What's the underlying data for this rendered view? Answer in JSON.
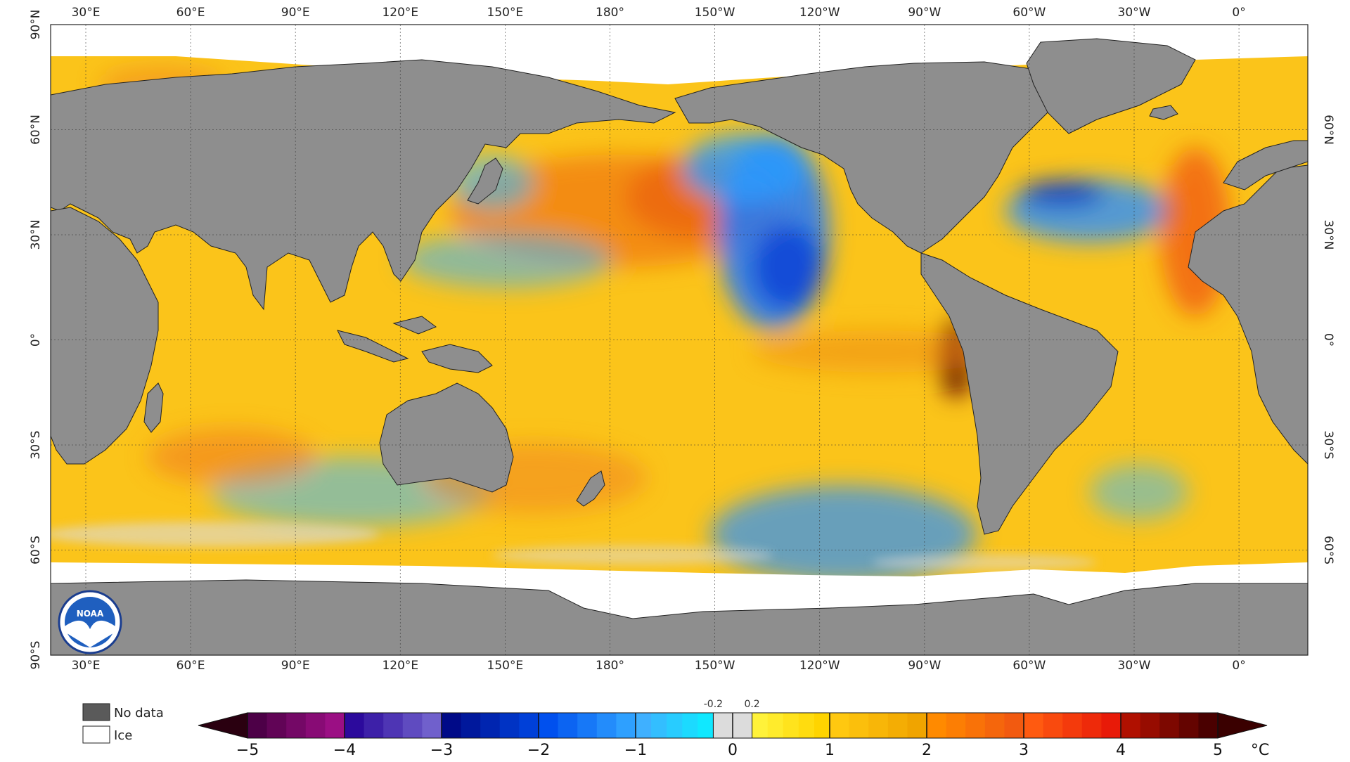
{
  "map": {
    "lon_labels": [
      "30°E",
      "60°E",
      "90°E",
      "120°E",
      "150°E",
      "180°",
      "150°W",
      "120°W",
      "90°W",
      "60°W",
      "30°W",
      "0°"
    ],
    "lat_labels_left": [
      "90°N",
      "60°N",
      "30°N",
      "0°",
      "30°S",
      "60°S",
      "90°S"
    ],
    "lat_labels_right": [
      "60°N",
      "30°N",
      "0°",
      "30°S",
      "60°S"
    ],
    "logo_text": "NOAA"
  },
  "legend": {
    "no_data_label": "No data",
    "ice_label": "Ice",
    "no_data_color": "#5a5a5a",
    "ice_color": "#ffffff"
  },
  "colorbar": {
    "ticks": [
      "−5",
      "−4",
      "−3",
      "−2",
      "−1",
      "0",
      "1",
      "2",
      "3",
      "4",
      "5"
    ],
    "small_ticks": [
      "-0.2",
      "0.2"
    ],
    "unit": "°C",
    "range": [
      -5,
      5
    ],
    "colors": {
      "min_extend": "#2a0010",
      "max_extend": "#3a0000",
      "stops": [
        {
          "from": -5,
          "to": -4,
          "c1": "#4d0047",
          "c2": "#9b0f84"
        },
        {
          "from": -4,
          "to": -3,
          "c1": "#2c0a9c",
          "c2": "#7060cc"
        },
        {
          "from": -3,
          "to": -2,
          "c1": "#000a88",
          "c2": "#0040d8"
        },
        {
          "from": -2,
          "to": -1,
          "c1": "#0050ee",
          "c2": "#2ea0ff"
        },
        {
          "from": -1,
          "to": -0.2,
          "c1": "#3fb0ff",
          "c2": "#10e8ff"
        },
        {
          "from": -0.2,
          "to": 0.2,
          "c1": "#dcdcdc",
          "c2": "#dcdcdc"
        },
        {
          "from": 0.2,
          "to": 1,
          "c1": "#fff23a",
          "c2": "#ffd400"
        },
        {
          "from": 1,
          "to": 2,
          "c1": "#ffc810",
          "c2": "#f0a400"
        },
        {
          "from": 2,
          "to": 3,
          "c1": "#ff8a00",
          "c2": "#f25a10"
        },
        {
          "from": 3,
          "to": 4,
          "c1": "#ff5a10",
          "c2": "#e81a08"
        },
        {
          "from": 4,
          "to": 5,
          "c1": "#b01000",
          "c2": "#4a0000"
        }
      ]
    }
  },
  "colors": {
    "land": "#8e8e8e",
    "ocean_base": "#fbc41a",
    "ice": "#ffffff",
    "grid": "#333333"
  }
}
